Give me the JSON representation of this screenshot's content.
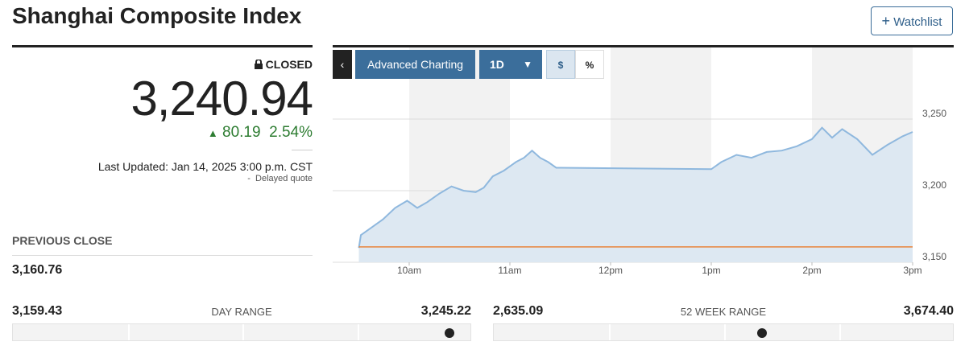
{
  "header": {
    "title": "Shanghai Composite Index",
    "watchlist_button": "Watchlist"
  },
  "quote": {
    "status": "CLOSED",
    "price": "3,240.94",
    "change": "80.19",
    "change_percent": "2.54%",
    "last_updated": "Last Updated: Jan 14, 2025 3:00 p.m. CST",
    "delay_note": "Delayed quote"
  },
  "previous_close": {
    "label": "PREVIOUS CLOSE",
    "value": "3,160.76"
  },
  "ranges": [
    {
      "low": "3,159.43",
      "label": "DAY RANGE",
      "high": "3,245.22"
    },
    {
      "low": "2,635.09",
      "label": "52 WEEK RANGE",
      "high": "3,674.40"
    }
  ],
  "toolbar": {
    "advanced": "Advanced Charting",
    "period": "1D",
    "dollar": "$",
    "percent": "%"
  },
  "chart_data": {
    "type": "line",
    "x": [
      9.5,
      9.52,
      9.62,
      9.74,
      9.86,
      9.98,
      10.08,
      10.18,
      10.3,
      10.42,
      10.54,
      10.66,
      10.74,
      10.83,
      10.94,
      11.06,
      11.14,
      11.22,
      11.3,
      11.38,
      11.46,
      11.5,
      13.0,
      13.1,
      13.25,
      13.4,
      13.55,
      13.7,
      13.85,
      14.0,
      14.1,
      14.2,
      14.3,
      14.45,
      14.6,
      14.75,
      14.9,
      15.0
    ],
    "series": [
      {
        "color": "#8fb8de",
        "area_color": "#dde8f2",
        "values": [
          3160,
          3169,
          3174,
          3180,
          3188,
          3193,
          3188,
          3192,
          3198,
          3203,
          3200,
          3199,
          3202,
          3210,
          3214,
          3220,
          3223,
          3228,
          3223,
          3220,
          3216,
          3216,
          3215,
          3220,
          3225,
          3223,
          3227,
          3228,
          3231,
          3236,
          3244,
          3237,
          3243,
          3236,
          3225,
          3232,
          3238,
          3241
        ]
      }
    ],
    "reference_line": {
      "value": 3160.76,
      "color": "#e8833a"
    },
    "xlim": [
      9.24,
      15
    ],
    "ylim": [
      3150,
      3300
    ],
    "xticks": [
      {
        "value": 10,
        "label": "10am"
      },
      {
        "value": 11,
        "label": "11am"
      },
      {
        "value": 12,
        "label": "12pm"
      },
      {
        "value": 13,
        "label": "1pm"
      },
      {
        "value": 14,
        "label": "2pm"
      },
      {
        "value": 15,
        "label": "3pm"
      }
    ],
    "yticks": [
      {
        "value": 3150,
        "label": "3,150"
      },
      {
        "value": 3200,
        "label": "3,200"
      },
      {
        "value": 3250,
        "label": "3,250"
      }
    ],
    "grid": true
  }
}
